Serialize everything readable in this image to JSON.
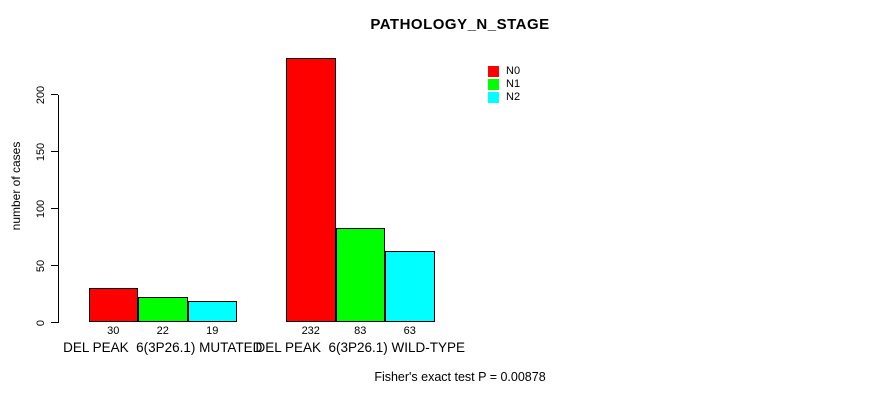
{
  "title": "PATHOLOGY_N_STAGE",
  "chart_data": {
    "type": "bar",
    "title": "PATHOLOGY_N_STAGE",
    "xlabel": "",
    "ylabel": "number of cases",
    "ylim": [
      0,
      235
    ],
    "yticks": [
      0,
      50,
      100,
      150,
      200
    ],
    "grid": false,
    "legend_position": "inside-upper-middle-right",
    "categories": [
      "DEL PEAK  6(3P26.1) MUTATED",
      "DEL PEAK  6(3P26.1) WILD-TYPE"
    ],
    "series": [
      {
        "name": "N0",
        "color": "#ff0000",
        "values": [
          30,
          232
        ]
      },
      {
        "name": "N1",
        "color": "#00ff00",
        "values": [
          22,
          83
        ]
      },
      {
        "name": "N2",
        "color": "#00ffff",
        "values": [
          19,
          63
        ]
      }
    ],
    "bar_value_labels": [
      [
        "30",
        "22",
        "19"
      ],
      [
        "232",
        "83",
        "63"
      ]
    ],
    "annotation": "Fisher's exact test P = 0.00878",
    "bar_border_color": "#000000",
    "axis_color": "#000000",
    "text_color": "#000000",
    "background_color": "#ffffff"
  }
}
